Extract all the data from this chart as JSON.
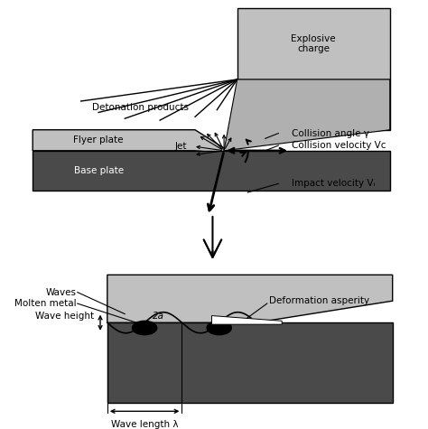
{
  "bg_color": "#ffffff",
  "light_gray": "#c0c0c0",
  "medium_gray": "#b0b0b0",
  "dark_gray": "#4a4a4a",
  "black": "#000000",
  "white": "#ffffff",
  "labels": {
    "explosive": "Explosive\ncharge",
    "detonation": "Detonation products",
    "flyer": "Flyer plate",
    "base": "Base plate",
    "jet": "Jet",
    "collision_angle": "Collision angle γ",
    "collision_velocity": "Collision velocity Vᴄ",
    "impact_velocity": "Impact velocity Vᵢ",
    "waves": "Waves",
    "molten": "Molten metal",
    "deformation": "Deformation asperity",
    "wave_height": "Wave height ",
    "wave_height_2a": "2a",
    "wave_length": "Wave length λ"
  },
  "fontsize": 7.5,
  "fontsize_small": 7.0
}
